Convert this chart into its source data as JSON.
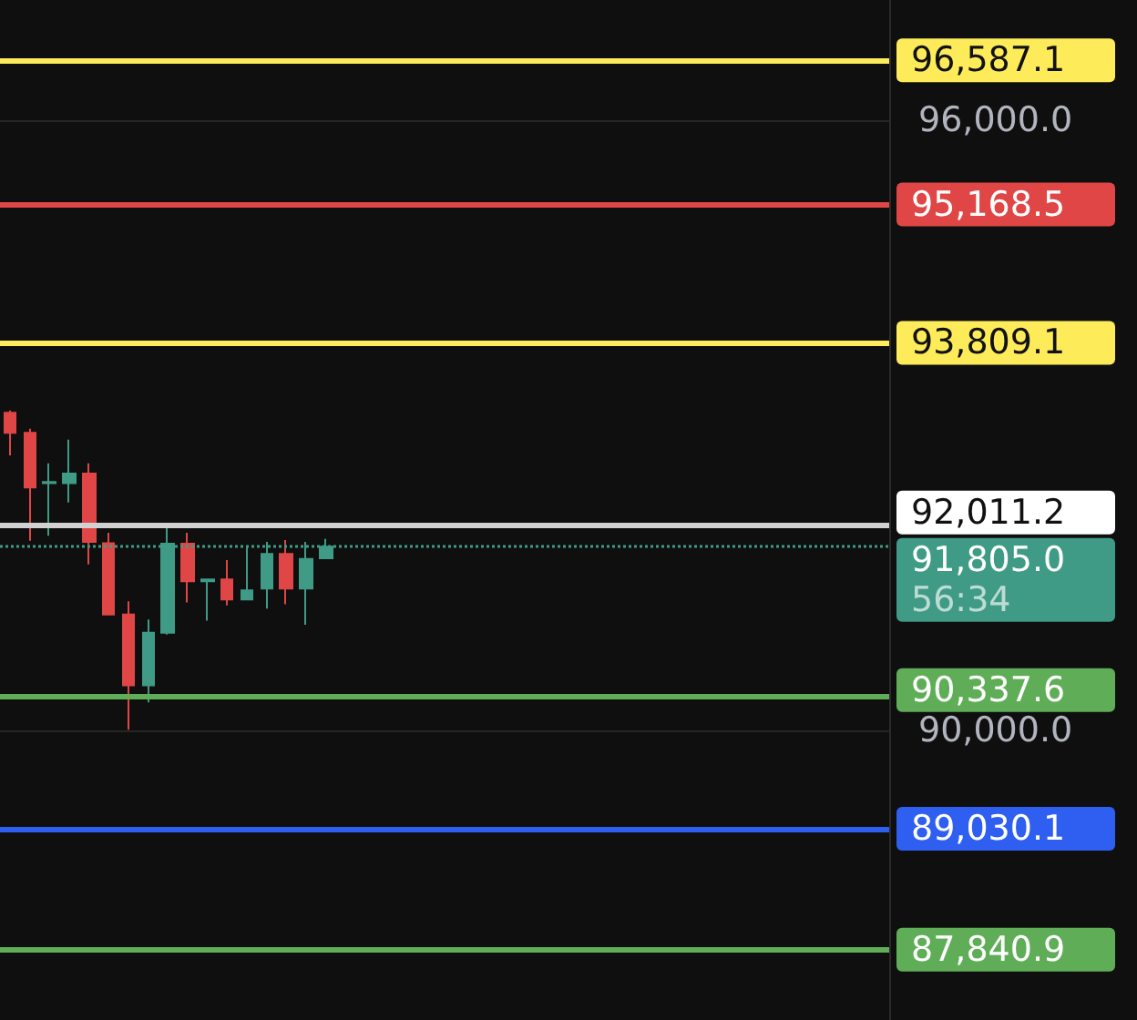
{
  "chart_data": {
    "type": "candlestick",
    "categories": [
      null,
      null,
      null,
      null,
      null,
      null,
      null,
      null,
      null,
      null,
      null,
      null,
      null,
      null,
      null,
      null,
      null,
      null,
      null,
      null,
      null,
      null,
      null,
      null,
      null,
      null,
      null,
      null,
      null,
      null,
      null,
      null,
      null,
      null,
      null,
      null,
      null,
      null,
      null,
      null,
      null,
      null,
      null,
      null,
      null
    ],
    "ohlc": [
      [
        93120,
        93143,
        92702,
        92923
      ],
      [
        92923,
        92964,
        91863,
        92387
      ],
      [
        92430,
        92625,
        91911,
        92440
      ],
      [
        92429,
        92857,
        92238,
        92523
      ],
      [
        92523,
        92625,
        91630,
        91852
      ],
      [
        91839,
        91941,
        91138,
        91138
      ],
      [
        91138,
        91268,
        90005,
        90441
      ],
      [
        90441,
        91089,
        90273,
        90959
      ],
      [
        90959,
        92000,
        90941,
        91834
      ],
      [
        91834,
        91941,
        91255,
        91464
      ],
      [
        91465,
        91482,
        91077,
        91482
      ],
      [
        91482,
        91673,
        91227,
        91286
      ],
      [
        91286,
        91804,
        91286,
        91375
      ],
      [
        91393,
        91852,
        91196,
        91732
      ],
      [
        91732,
        91870,
        91238,
        91393
      ],
      [
        91393,
        91852,
        91036,
        91684
      ],
      [
        91691,
        91880,
        91691,
        91805
      ],
      null,
      null,
      null,
      null,
      null,
      null,
      null,
      null,
      null,
      null,
      null,
      null,
      null,
      null,
      null,
      null,
      null,
      null,
      null,
      null,
      null,
      null,
      null,
      null,
      null,
      null,
      null,
      null
    ],
    "colors": [
      "#e04646",
      "#e04646",
      "#3f9b85",
      "#3f9b85",
      "#e04646",
      "#e04646",
      "#e04646",
      "#3f9b85",
      "#3f9b85",
      "#e04646",
      "#3f9b85",
      "#e04646",
      "#3f9b85",
      "#3f9b85",
      "#e04646",
      "#3f9b85",
      "#3f9b85",
      null,
      null,
      null,
      null,
      null,
      null,
      null,
      null,
      null,
      null,
      null,
      null,
      null,
      null,
      null,
      null,
      null,
      null,
      null,
      null,
      null,
      null,
      null,
      null,
      null,
      null,
      null,
      null
    ],
    "ylim": [
      87150,
      97180
    ],
    "yticks": [
      {
        "value": 90000,
        "label": "90,000.0"
      },
      {
        "value": 96000,
        "label": "96,000.0"
      }
    ],
    "grid": "y",
    "ref_lines": [
      {
        "axis": "y",
        "value": 96587.1,
        "label": "96,587.1",
        "color": "#fdeb5a",
        "line_style": "solid"
      },
      {
        "axis": "y",
        "value": 95168.5,
        "label": "95,168.5",
        "color": "#e04646",
        "line_style": "solid"
      },
      {
        "axis": "y",
        "value": 93809.1,
        "label": "93,809.1",
        "color": "#fdeb5a",
        "line_style": "solid"
      },
      {
        "axis": "y",
        "value": 92011.2,
        "label": "92,011.2",
        "color": "#d1d1d1",
        "line_style": "solid"
      },
      {
        "axis": "y",
        "value": 91805.0,
        "label": "91,805.0",
        "color": "#3f9b85",
        "line_style": "dotted"
      },
      {
        "axis": "y",
        "value": 90337.6,
        "label": "90,337.6",
        "color": "#5fae57",
        "line_style": "solid"
      },
      {
        "axis": "y",
        "value": 89030.1,
        "label": "89,030.1",
        "color": "#2f5ff0",
        "line_style": "solid"
      },
      {
        "axis": "y",
        "value": 87840.9,
        "label": "87,840.9",
        "color": "#5fae57",
        "line_style": "solid"
      }
    ],
    "annotations": [
      "56:34"
    ]
  }
}
